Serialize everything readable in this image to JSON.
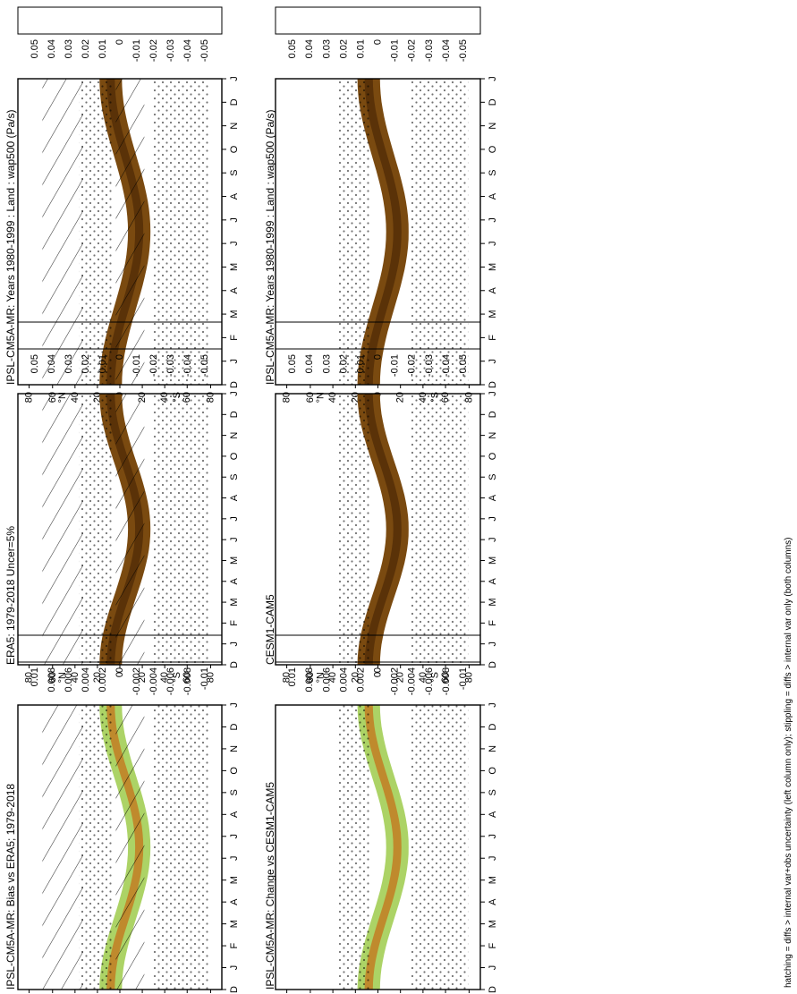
{
  "footnote": "hatching = diffs > internal var+obs uncertainty (left column only); stippling = diffs > internal var only (both columns)",
  "colors": {
    "blue_dark": "#2b7fc6",
    "blue_light": "#8ec6ee",
    "green": [
      "#2f7a1e",
      "#4b9a2a",
      "#6bb03a",
      "#8cc44c",
      "#acd366",
      "#cbe48e",
      "#e6f1c4"
    ],
    "white": "#ffffff",
    "brown": [
      "#f6ecbe",
      "#ecd48f",
      "#d9b35c",
      "#bf8a2d",
      "#9c6518",
      "#7a4a10",
      "#5a3208"
    ]
  },
  "chart_data": [
    {
      "type": "heatmap",
      "id": "p1",
      "title": "IPSL-CM5A-MR: Years 1980-1999 : Land : wap500 (Pa/s)",
      "variable": "wap500",
      "months": [
        "D",
        "J",
        "F",
        "M",
        "A",
        "M",
        "J",
        "J",
        "A",
        "S",
        "O",
        "N",
        "D",
        "J"
      ],
      "lat_ticks": [
        "80",
        "60",
        "40",
        "20",
        "0",
        "20",
        "40",
        "60",
        "80"
      ],
      "lat_axis_label": [
        "°N",
        "°S"
      ],
      "colorbar_ticks": [
        "0.05",
        "0.04",
        "0.03",
        "0.02",
        "0.01",
        "0",
        "-0.01",
        "-0.02",
        "-0.03",
        "-0.04",
        "-0.05"
      ],
      "hatching": true,
      "stippling": true
    },
    {
      "type": "heatmap",
      "id": "p2",
      "title": "ERA5: 1979-2018 Uncer=5%",
      "variable": "wap500",
      "months": [
        "D",
        "J",
        "F",
        "M",
        "A",
        "M",
        "J",
        "J",
        "A",
        "S",
        "O",
        "N",
        "D",
        "J"
      ],
      "lat_ticks": [
        "80",
        "60",
        "40",
        "20",
        "0",
        "20",
        "40",
        "60",
        "80"
      ],
      "lat_axis_label": [
        "°N",
        "°S"
      ],
      "colorbar_ticks": [
        "0.05",
        "0.04",
        "0.03",
        "0.02",
        "0.01",
        "0",
        "-0.01",
        "-0.02",
        "-0.03",
        "-0.04",
        "-0.05"
      ],
      "hatching": true,
      "stippling": true
    },
    {
      "type": "heatmap",
      "id": "p3",
      "title": "IPSL-CM5A-MR: Bias vs ERA5; 1979-2018",
      "variable": "wap500",
      "months": [
        "D",
        "J",
        "F",
        "M",
        "A",
        "M",
        "J",
        "J",
        "A",
        "S",
        "O",
        "N",
        "D",
        "J"
      ],
      "lat_ticks": [
        "80",
        "60",
        "40",
        "20",
        "0",
        "20",
        "40",
        "60",
        "80"
      ],
      "lat_axis_label": [
        "°N",
        "°S"
      ],
      "colorbar_ticks": [
        "0.01",
        "0.008",
        "0.006",
        "0.004",
        "0.002",
        "0",
        "-0.002",
        "-0.004",
        "-0.006",
        "-0.008",
        "-0.01"
      ],
      "hatching": true,
      "stippling": true
    },
    {
      "type": "heatmap",
      "id": "p4",
      "title": "IPSL-CM5A-MR: Years 1980-1999 : Land : wap500 (Pa/s)",
      "variable": "wap500",
      "months": [
        "D",
        "J",
        "F",
        "M",
        "A",
        "M",
        "J",
        "J",
        "A",
        "S",
        "O",
        "N",
        "D",
        "J"
      ],
      "lat_ticks": [
        "80",
        "60",
        "40",
        "20",
        "0",
        "20",
        "40",
        "60",
        "80"
      ],
      "lat_axis_label": [
        "°N",
        "°S"
      ],
      "colorbar_ticks": [
        "0.05",
        "0.04",
        "0.03",
        "0.02",
        "0.01",
        "0",
        "-0.01",
        "-0.02",
        "-0.03",
        "-0.04",
        "-0.05"
      ],
      "hatching": false,
      "stippling": true
    },
    {
      "type": "heatmap",
      "id": "p5",
      "title": "CESM1-CAM5",
      "variable": "wap500",
      "months": [
        "D",
        "J",
        "F",
        "M",
        "A",
        "M",
        "J",
        "J",
        "A",
        "S",
        "O",
        "N",
        "D",
        "J"
      ],
      "lat_ticks": [
        "80",
        "60",
        "40",
        "20",
        "0",
        "20",
        "40",
        "60",
        "80"
      ],
      "lat_axis_label": [
        "°N",
        "°S"
      ],
      "colorbar_ticks": [
        "0.05",
        "0.04",
        "0.03",
        "0.02",
        "0.01",
        "0",
        "-0.01",
        "-0.02",
        "-0.03",
        "-0.04",
        "-0.05"
      ],
      "hatching": false,
      "stippling": true
    },
    {
      "type": "heatmap",
      "id": "p6",
      "title": "IPSL-CM5A-MR: Change vs CESM1-CAM5",
      "variable": "wap500",
      "months": [
        "D",
        "J",
        "F",
        "M",
        "A",
        "M",
        "J",
        "J",
        "A",
        "S",
        "O",
        "N",
        "D",
        "J"
      ],
      "lat_ticks": [
        "80",
        "60",
        "40",
        "20",
        "0",
        "20",
        "40",
        "60",
        "80"
      ],
      "lat_axis_label": [
        "°N",
        "°S"
      ],
      "colorbar_ticks": [
        "0.01",
        "0.008",
        "0.006",
        "0.004",
        "0.002",
        "0",
        "-0.002",
        "-0.004",
        "-0.006",
        "-0.008",
        "-0.01"
      ],
      "hatching": false,
      "stippling": true
    }
  ]
}
